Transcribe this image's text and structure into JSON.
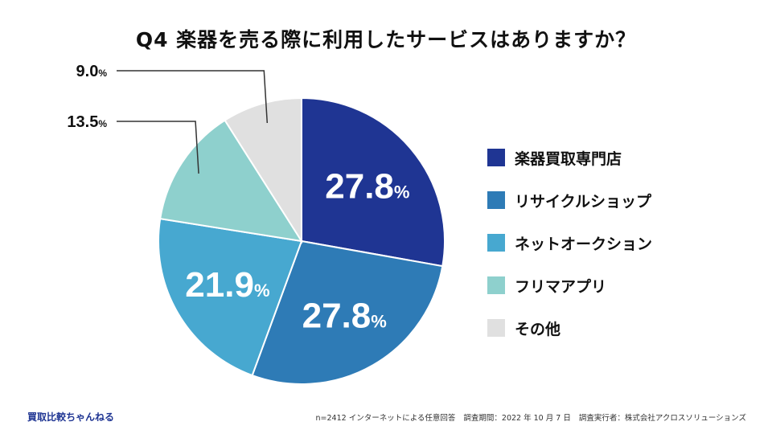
{
  "title": "Q4 楽器を売る際に利用したサービスはありますか？",
  "chart_data": {
    "type": "pie",
    "title": "Q4 楽器を売る際に利用したサービスはありますか？",
    "unit": "%",
    "categories": [
      "楽器買取専門店",
      "リサイクルショップ",
      "ネットオークション",
      "フリマアプリ",
      "その他"
    ],
    "values": [
      27.8,
      27.8,
      21.9,
      13.5,
      9.0
    ],
    "value_labels": [
      "27.8",
      "27.8",
      "21.9",
      "13.5",
      "9.0"
    ],
    "colors": [
      "#1f3593",
      "#2e7bb6",
      "#47a8d0",
      "#8ed0cd",
      "#e0e0e0"
    ],
    "legend_position": "right"
  },
  "legend": {
    "items": [
      {
        "label": "楽器買取専門店",
        "color": "#1f3593"
      },
      {
        "label": "リサイクルショップ",
        "color": "#2e7bb6"
      },
      {
        "label": "ネットオークション",
        "color": "#47a8d0"
      },
      {
        "label": "フリマアプリ",
        "color": "#8ed0cd"
      },
      {
        "label": "その他",
        "color": "#e0e0e0"
      }
    ]
  },
  "footer": {
    "brand": "買取比較ちゃんねる",
    "sample": "n=2412 インターネットによる任意回答",
    "period": "調査期間：2022 年 10 月 7 日",
    "conductor": "調査実行者：株式会社アクロスソリューションズ"
  }
}
